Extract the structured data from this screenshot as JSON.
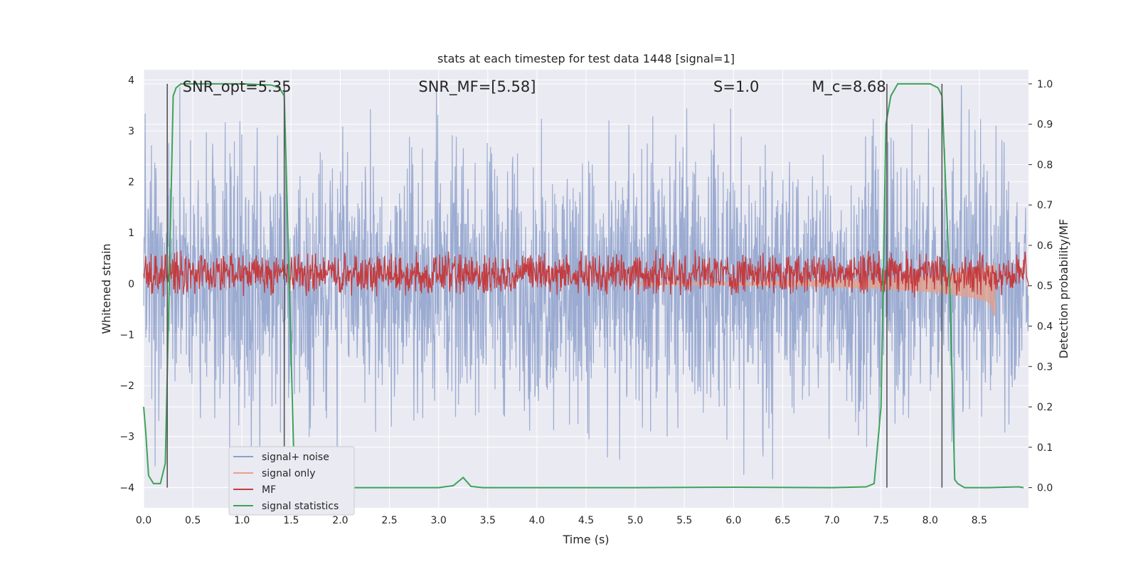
{
  "chart_data": {
    "type": "line",
    "title": "stats at each timestep for test data 1448 [signal=1]",
    "xlabel": "Time (s)",
    "ylabel": "Whitened strain",
    "ylabel_right": "Detection probability/MF",
    "xlim": [
      0,
      9.0
    ],
    "ylim": [
      -4.4,
      4.2
    ],
    "ylim_right": [
      -0.05,
      1.035
    ],
    "x_ticks": [
      "0.0",
      "0.5",
      "1.0",
      "1.5",
      "2.0",
      "2.5",
      "3.0",
      "3.5",
      "4.0",
      "4.5",
      "5.0",
      "5.5",
      "6.0",
      "6.5",
      "7.0",
      "7.5",
      "8.0",
      "8.5"
    ],
    "y_ticks": [
      "−4",
      "−3",
      "−2",
      "−1",
      "0",
      "1",
      "2",
      "3",
      "4"
    ],
    "y_ticks_right": [
      "0.0",
      "0.1",
      "0.2",
      "0.3",
      "0.4",
      "0.5",
      "0.6",
      "0.7",
      "0.8",
      "0.9",
      "1.0"
    ],
    "annotations": [
      {
        "text": "SNR_opt=5.35",
        "x": 0.2,
        "y": 3.85
      },
      {
        "text": "SNR_MF=[5.58]",
        "x": 2.6,
        "y": 3.85
      },
      {
        "text": "S=1.0",
        "x": 5.6,
        "y": 3.85
      },
      {
        "text": "M_c=8.68",
        "x": 6.6,
        "y": 3.85
      }
    ],
    "vertical_lines": [
      0.24,
      1.43,
      7.56,
      8.12
    ],
    "legend": {
      "position": "lower-left",
      "entries": [
        {
          "label": "signal+ noise",
          "color": "#8da0cb"
        },
        {
          "label": "signal only",
          "color": "#e8a088"
        },
        {
          "label": "MF",
          "color": "#c43c3f"
        },
        {
          "label": "signal statistics",
          "color": "#3da35a"
        }
      ]
    },
    "series": [
      {
        "name": "signal+ noise",
        "axis": "left",
        "style": "noise",
        "x_range": [
          0,
          9.0
        ],
        "amplitude": 1.2,
        "peak_max": 3.9,
        "peak_min": -3.9
      },
      {
        "name": "signal only",
        "axis": "left",
        "style": "chirp",
        "x": [
          5.0,
          6.0,
          6.5,
          7.0,
          7.5,
          7.8,
          8.0,
          8.2,
          8.4,
          8.5,
          8.6,
          8.66
        ],
        "y_upper": [
          0.02,
          0.03,
          0.05,
          0.07,
          0.1,
          0.13,
          0.15,
          0.19,
          0.23,
          0.27,
          0.33,
          0.4
        ],
        "y_lower": [
          -0.02,
          -0.03,
          -0.04,
          -0.06,
          -0.1,
          -0.13,
          -0.16,
          -0.2,
          -0.26,
          -0.3,
          -0.36,
          -0.65
        ]
      },
      {
        "name": "MF",
        "axis": "right",
        "style": "noise",
        "x_range": [
          0,
          9.0
        ],
        "center": 0.53,
        "amplitude": 0.03,
        "peak_max": 0.59
      },
      {
        "name": "signal statistics",
        "axis": "right",
        "x": [
          0.0,
          0.02,
          0.05,
          0.1,
          0.17,
          0.22,
          0.26,
          0.3,
          0.33,
          0.38,
          0.5,
          1.0,
          1.3,
          1.38,
          1.43,
          1.47,
          1.53,
          1.6,
          1.7,
          2.0,
          3.0,
          3.15,
          3.25,
          3.33,
          3.45,
          5.0,
          6.0,
          7.0,
          7.35,
          7.43,
          7.5,
          7.55,
          7.6,
          7.67,
          7.75,
          8.0,
          8.08,
          8.12,
          8.2,
          8.25,
          8.28,
          8.35,
          8.6,
          8.9,
          8.95
        ],
        "y": [
          0.2,
          0.14,
          0.03,
          0.01,
          0.01,
          0.06,
          0.5,
          0.97,
          0.99,
          1.0,
          1.0,
          1.0,
          0.997,
          0.99,
          0.97,
          0.6,
          0.05,
          0.0,
          0.0,
          0.0,
          0.0,
          0.005,
          0.025,
          0.003,
          0.0,
          0.0,
          0.001,
          0.0,
          0.002,
          0.01,
          0.2,
          0.9,
          0.97,
          1.0,
          1.0,
          1.0,
          0.99,
          0.97,
          0.5,
          0.02,
          0.01,
          0.0,
          0.0,
          0.002,
          0.0
        ]
      }
    ]
  }
}
